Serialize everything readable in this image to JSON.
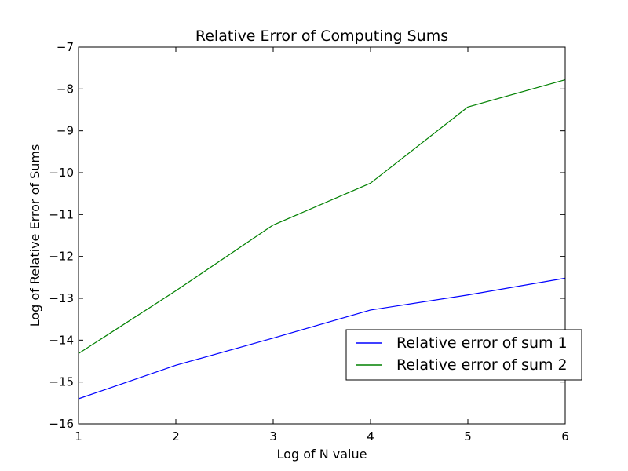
{
  "chart_data": {
    "type": "line",
    "title": "Relative Error of Computing Sums",
    "xlabel": "Log of N value",
    "ylabel": "Log of Relative Error of Sums",
    "xlim": [
      1,
      6
    ],
    "ylim": [
      -16,
      -7
    ],
    "xticks": [
      1,
      2,
      3,
      4,
      5,
      6
    ],
    "yticks": [
      -16,
      -15,
      -14,
      -13,
      -12,
      -11,
      -10,
      -9,
      -8,
      -7
    ],
    "xtick_labels": [
      "1",
      "2",
      "3",
      "4",
      "5",
      "6"
    ],
    "ytick_labels": [
      "−16",
      "−15",
      "−14",
      "−13",
      "−12",
      "−11",
      "−10",
      "−9",
      "−8",
      "−7"
    ],
    "grid": false,
    "legend_position": "lower-right",
    "x": [
      1,
      2,
      3,
      4,
      5,
      6
    ],
    "series": [
      {
        "name": "Relative error of sum 1",
        "color": "#0000ff",
        "values": [
          -15.4,
          -14.6,
          -13.95,
          -13.28,
          -12.92,
          -12.52
        ]
      },
      {
        "name": "Relative error of sum 2",
        "color": "#008000",
        "values": [
          -14.32,
          -12.82,
          -11.25,
          -10.25,
          -8.43,
          -7.78
        ]
      }
    ]
  }
}
